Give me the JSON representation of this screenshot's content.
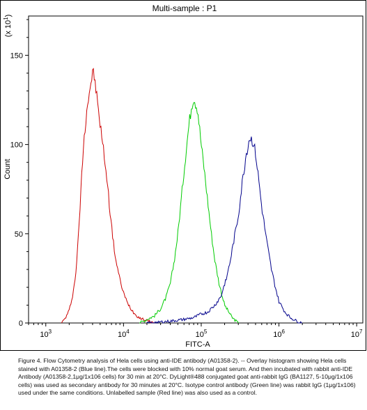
{
  "chart_data": {
    "type": "line",
    "title": "Multi-sample : P1",
    "xlabel": "FITC-A",
    "ylabel": "Count",
    "y_multiplier_label": "(x 10^1)",
    "x_scale": "log",
    "xlim": [
      600,
      12000000
    ],
    "ylim": [
      0,
      172
    ],
    "x_tick_labels": [
      {
        "value": 1000,
        "base": "10",
        "exp": "3"
      },
      {
        "value": 10000,
        "base": "10",
        "exp": "4"
      },
      {
        "value": 100000,
        "base": "10",
        "exp": "5"
      },
      {
        "value": 1000000,
        "base": "10",
        "exp": "6"
      },
      {
        "value": 10000000,
        "base": "10",
        "exp": "7"
      }
    ],
    "y_ticks": [
      0,
      50,
      100,
      150
    ],
    "grid": false,
    "legend": "none",
    "series": [
      {
        "color": "#cc0000",
        "x": [
          1600,
          1800,
          2000,
          2200,
          2400,
          2600,
          2800,
          3000,
          3200,
          3400,
          3600,
          3800,
          4000,
          4200,
          4400,
          4700,
          5000,
          5400,
          5800,
          6300,
          6800,
          7400,
          8000,
          9000,
          10000,
          11000,
          12500,
          14000,
          16000,
          18000,
          21000,
          25000
        ],
        "y": [
          0,
          3,
          7,
          15,
          25,
          45,
          70,
          95,
          110,
          122,
          128,
          135,
          140,
          138,
          132,
          120,
          112,
          100,
          90,
          75,
          60,
          45,
          35,
          24,
          17,
          12,
          8,
          5,
          3,
          2,
          1,
          0
        ]
      },
      {
        "color": "#00cc00",
        "x": [
          16000,
          20000,
          25000,
          30000,
          35000,
          40000,
          45000,
          50000,
          55000,
          60000,
          65000,
          70000,
          75000,
          80000,
          90000,
          100000,
          110000,
          120000,
          135000,
          150000,
          170000,
          200000,
          250000,
          300000
        ],
        "y": [
          0,
          2,
          4,
          8,
          14,
          22,
          35,
          50,
          68,
          85,
          100,
          112,
          122,
          127,
          120,
          100,
          85,
          70,
          50,
          35,
          22,
          10,
          3,
          0
        ]
      },
      {
        "color": "#00008b",
        "x": [
          20000,
          40000,
          60000,
          80000,
          100000,
          120000,
          150000,
          180000,
          200000,
          230000,
          260000,
          300000,
          340000,
          380000,
          420000,
          460000,
          500000,
          550000,
          600000,
          700000,
          800000,
          900000,
          1000000,
          1200000,
          1400000,
          1700000,
          2000000
        ],
        "y": [
          0,
          1,
          2,
          3,
          5,
          6,
          10,
          15,
          22,
          32,
          45,
          60,
          80,
          95,
          104,
          102,
          95,
          80,
          65,
          45,
          30,
          20,
          12,
          6,
          3,
          1,
          0
        ]
      }
    ]
  },
  "caption": {
    "text": "Figure 4. Flow Cytometry analysis of Hela cells using anti-IDE antibody (A01358-2). -- Overlay histogram showing Hela cells stained with A01358-2 (Blue line).The cells were blocked with 10% normal goat serum. And then incubated with rabbit anti-IDE Antibody (A01358-2,1μg/1x106 cells) for 30 min at 20°C. DyLight®488 conjugated goat anti-rabbit IgG (BA1127, 5-10μg/1x106 cells) was used as secondary antibody for 30 minutes at 20°C. Isotype control antibody (Green line) was rabbit IgG (1μg/1x106) used under the same conditions. Unlabelled sample (Red line) was also used as a control."
  }
}
